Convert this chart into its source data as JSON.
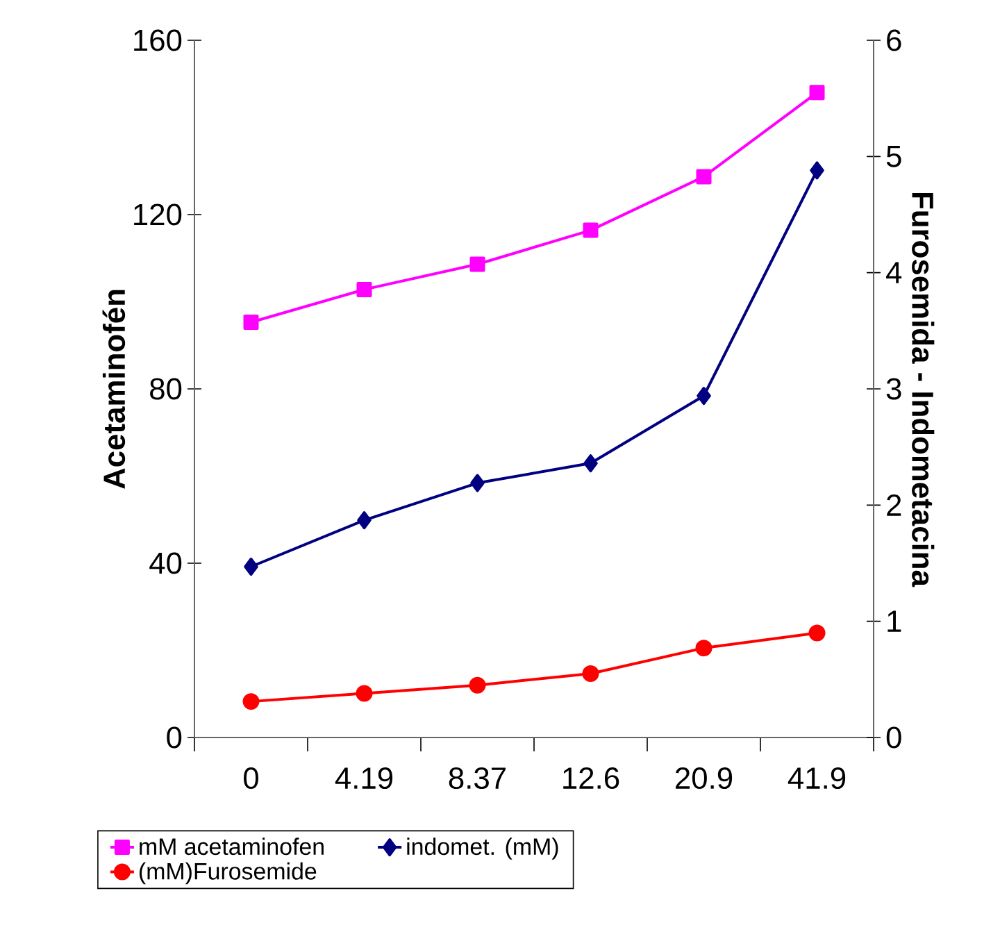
{
  "chart_data": {
    "type": "line",
    "categories": [
      "0",
      "4.19",
      "8.37",
      "12.6",
      "20.9",
      "41.9"
    ],
    "ylabel": "Acetaminofén",
    "y2label": "Furosemida - Indometacina",
    "ylim": [
      0,
      160
    ],
    "yticks": [
      0,
      40,
      80,
      120,
      160
    ],
    "y2lim": [
      0,
      6
    ],
    "y2ticks": [
      0,
      1,
      2,
      3,
      4,
      5,
      6
    ],
    "legend": "bottom",
    "grid": false,
    "series": [
      {
        "name": "mM acetaminofen",
        "color": "#ff00ff",
        "marker": "square",
        "values": [
          95.3,
          102.8,
          108.6,
          116.4,
          128.7,
          148.0
        ]
      },
      {
        "name": "indomet. (mM)",
        "color": "#000080",
        "marker": "diamond",
        "axis": "y2",
        "values": [
          1.47,
          1.87,
          2.19,
          2.36,
          2.94,
          4.88
        ]
      },
      {
        "name": "(mM)Furosemide",
        "color": "#ff0000",
        "marker": "circle",
        "axis": "y2",
        "values": [
          0.31,
          0.38,
          0.45,
          0.55,
          0.77,
          0.9
        ]
      }
    ]
  }
}
